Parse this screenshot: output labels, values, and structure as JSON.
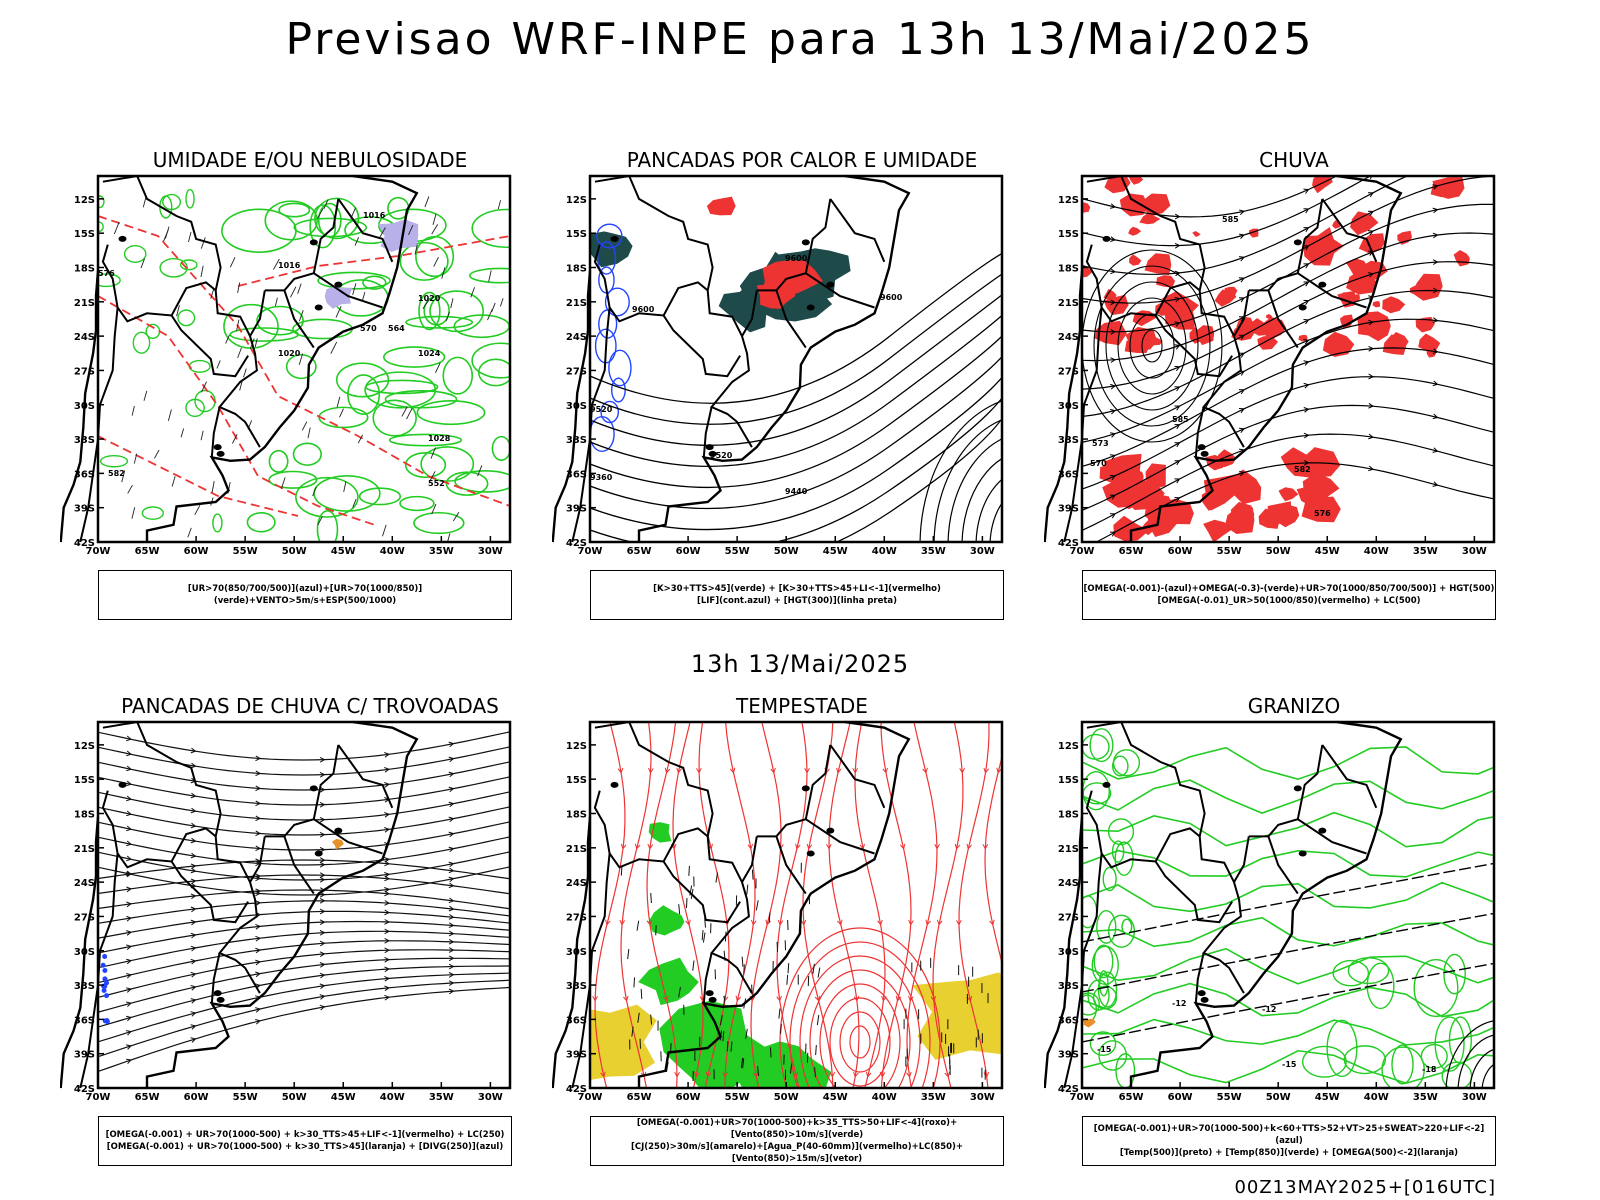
{
  "header": {
    "title": "Previsao WRF-INPE  para 13h 13/Mai/2025"
  },
  "mid_title": "13h 13/Mai/2025",
  "footer": "00Z13MAY2025+[016UTC]",
  "axes": {
    "lat_labels": [
      "12S",
      "15S",
      "18S",
      "21S",
      "24S",
      "27S",
      "30S",
      "33S",
      "36S",
      "39S",
      "42S"
    ],
    "lon_labels": [
      "70W",
      "65W",
      "60W",
      "55W",
      "50W",
      "45W",
      "40W",
      "35W",
      "30W"
    ]
  },
  "panels": [
    {
      "title": "UMIDADE E/OU NEBULOSIDADE",
      "legend": [
        "[UR>70(850/700/500)](azul)+[UR>70(1000/850)](verde)+VENTO>5m/s+ESP(500/1000)"
      ],
      "contour_labels": [
        "1016",
        "1016",
        "1020",
        "1020",
        "1024",
        "1028",
        "570",
        "564",
        "576",
        "552",
        "582"
      ]
    },
    {
      "title": "PANCADAS POR CALOR E UMIDADE",
      "legend": [
        "[K>30+TTS>45](verde) + [K>30+TTS>45+LI<-1](vermelho)",
        "[LIF](cont.azul) + [HGT(300)](linha preta)"
      ],
      "contour_labels": [
        "9600",
        "9600",
        "9600",
        "9520",
        "9440",
        "9520",
        "9360"
      ]
    },
    {
      "title": "CHUVA",
      "legend": [
        "[OMEGA(-0.001)-(azul)+OMEGA(-0.3)-(verde)+UR>70(1000/850/700/500)] + HGT(500)",
        "[OMEGA(-0.01)_UR>50(1000/850)(vermelho) + LC(500)"
      ],
      "contour_labels": [
        "585",
        "582",
        "576",
        "570",
        "573",
        "585"
      ]
    },
    {
      "title": "PANCADAS DE CHUVA C/ TROVOADAS",
      "legend": [
        "[OMEGA(-0.001) + UR>70(1000-500) + k>30_TTS>45+LIF<-1](vermelho) + LC(250)",
        "[OMEGA(-0.001) + UR>70(1000-500) + k>30_TTS>45](laranja) + [DIVG(250)](azul)"
      ],
      "contour_labels": []
    },
    {
      "title": "TEMPESTADE",
      "legend": [
        "[OMEGA(-0.001)+UR>70(1000-500)+k>35_TTS>50+LIF<-4](roxo)+[Vento(850)>10m/s](verde)",
        "[CJ(250)>30m/s](amarelo)+[Agua_P(40-60mm)](vermelho)+LC(850)+[Vento(850)>15m/s](vetor)"
      ],
      "contour_labels": []
    },
    {
      "title": "GRANIZO",
      "legend": [
        "[OMEGA(-0.001)+UR>70(1000-500)+k<60+TTS>52+VT>25+SWEAT>220+LIF<-2](azul)",
        "[Temp(500)](preto) + [Temp(850)](verde) + [OMEGA(500)<-2](laranja)"
      ],
      "contour_labels": [
        "-12",
        "-12",
        "-15",
        "-18",
        "-15"
      ]
    }
  ],
  "colors": {
    "green": "#22cc22",
    "red": "#ee3333",
    "blue": "#2244ff",
    "yellow": "#e8d030",
    "dark_teal": "#1f4a4a",
    "lavender": "#b8b0e8",
    "dark_green": "#118811"
  }
}
